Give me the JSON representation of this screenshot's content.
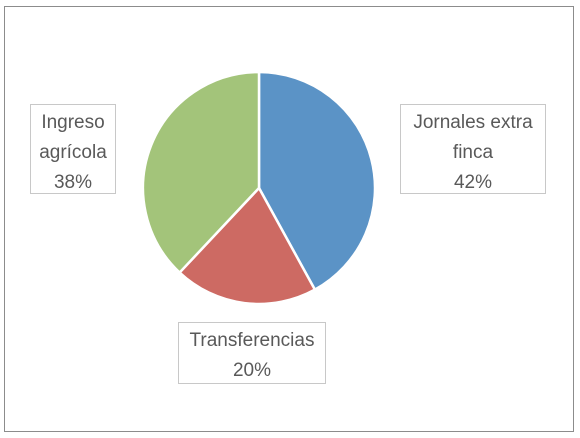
{
  "chart_data": {
    "type": "pie",
    "title": "",
    "slices": [
      {
        "label_lines": [
          "Jornales extra",
          "finca"
        ],
        "value": 42,
        "pct_label": "42%",
        "color": "#5b93c6"
      },
      {
        "label_lines": [
          "Transferencias"
        ],
        "value": 20,
        "pct_label": "20%",
        "color": "#cd6a63"
      },
      {
        "label_lines": [
          "Ingreso",
          "agrícola"
        ],
        "value": 38,
        "pct_label": "38%",
        "color": "#a3c47a"
      }
    ],
    "start_angle": "12 o'clock",
    "direction": "clockwise",
    "legend": "none",
    "slice_border_color": "#ffffff"
  }
}
